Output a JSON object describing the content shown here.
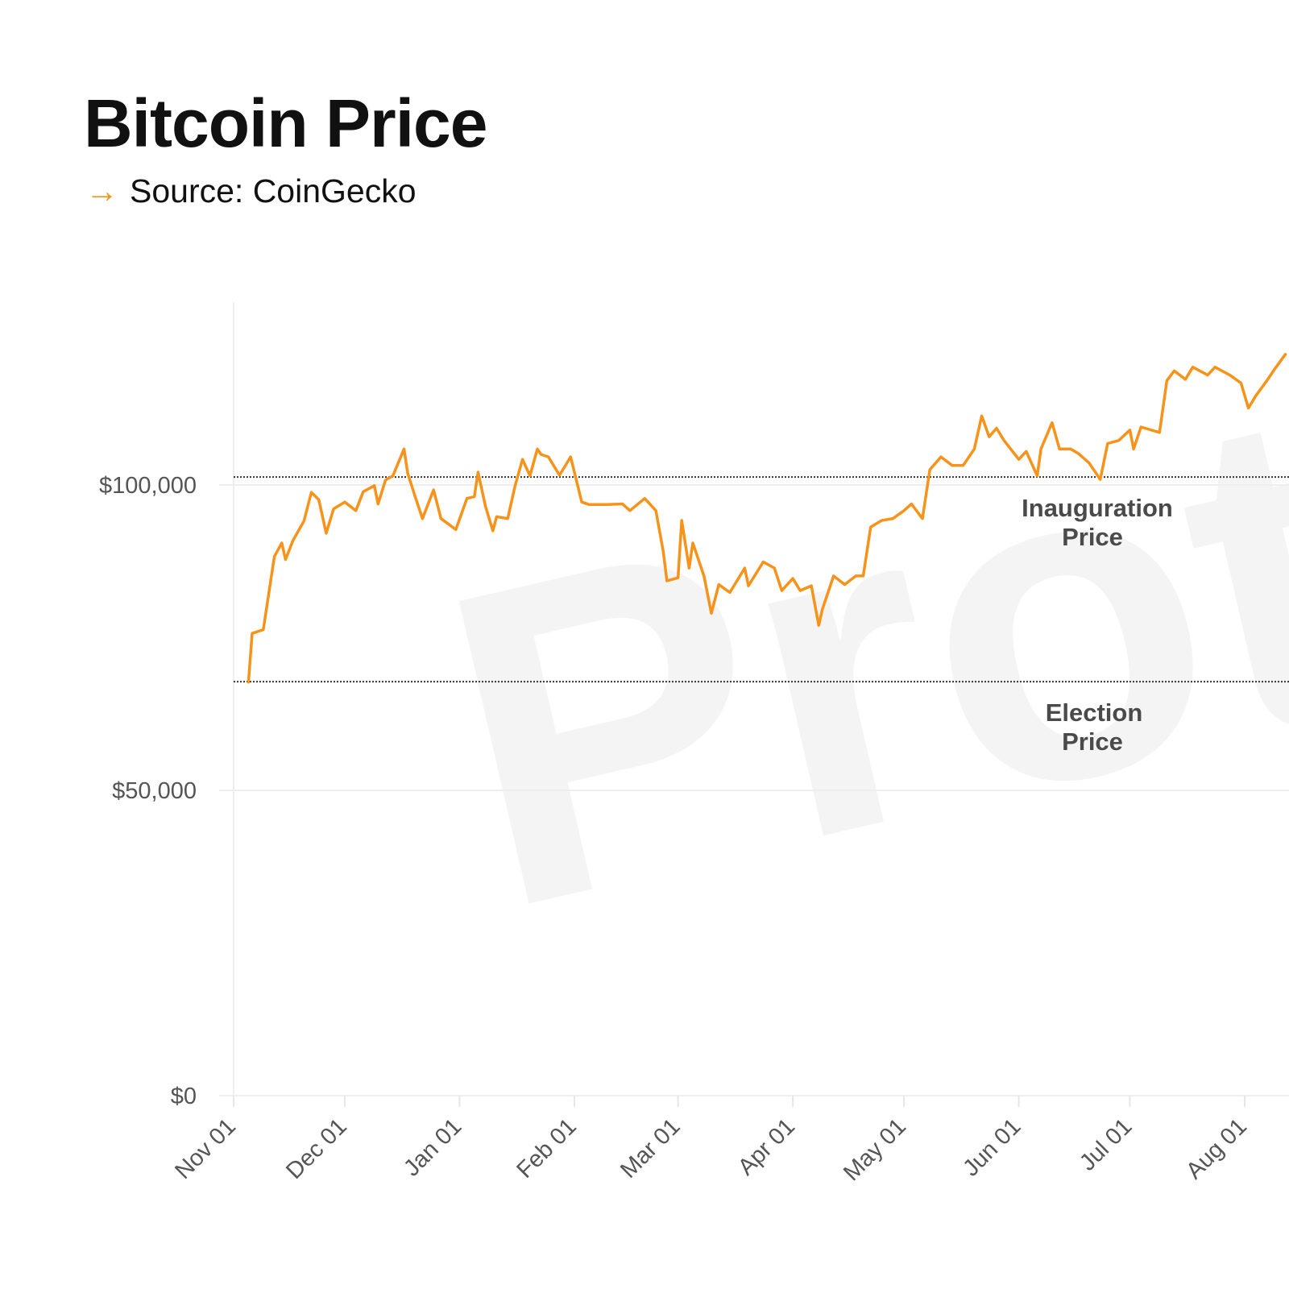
{
  "chart_data": {
    "type": "line",
    "title": "Bitcoin Price",
    "subtitle": "Source: CoinGecko",
    "watermark": "Protos",
    "xlabel": "",
    "ylabel": "",
    "ylim": [
      0,
      127000
    ],
    "x_ticks": [
      "Nov 01",
      "Dec 01",
      "Jan 01",
      "Feb 01",
      "Mar 01",
      "Apr 01",
      "May 01",
      "Jun 01",
      "Jul 01",
      "Aug 01"
    ],
    "y_ticks": [
      {
        "value": 0,
        "label": "$0"
      },
      {
        "value": 50000,
        "label": "$50,000"
      },
      {
        "value": 100000,
        "label": "$100,000"
      }
    ],
    "grid": "horizontal",
    "line_color": "#f7931a",
    "reference_lines": [
      {
        "label_line1": "Inauguration",
        "label_line2": "Price",
        "value": 101300
      },
      {
        "label_line1": "Election",
        "label_line2": "Price",
        "value": 67800
      }
    ],
    "series": [
      {
        "points": [
          [
            "Nov 05",
            67700
          ],
          [
            "Nov 06",
            75700
          ],
          [
            "Nov 09",
            76300
          ],
          [
            "Nov 12",
            88300
          ],
          [
            "Nov 14",
            90500
          ],
          [
            "Nov 15",
            87800
          ],
          [
            "Nov 17",
            90900
          ],
          [
            "Nov 20",
            94100
          ],
          [
            "Nov 22",
            98800
          ],
          [
            "Nov 24",
            97600
          ],
          [
            "Nov 26",
            92100
          ],
          [
            "Nov 28",
            96100
          ],
          [
            "Dec 01",
            97200
          ],
          [
            "Dec 04",
            95800
          ],
          [
            "Dec 06",
            98900
          ],
          [
            "Dec 09",
            99900
          ],
          [
            "Dec 10",
            96900
          ],
          [
            "Dec 12",
            100800
          ],
          [
            "Dec 14",
            101500
          ],
          [
            "Dec 17",
            105900
          ],
          [
            "Dec 18",
            101900
          ],
          [
            "Dec 20",
            98100
          ],
          [
            "Dec 22",
            94500
          ],
          [
            "Dec 25",
            99200
          ],
          [
            "Dec 27",
            94500
          ],
          [
            "Dec 31",
            92700
          ],
          [
            "Jan 03",
            97800
          ],
          [
            "Jan 05",
            98100
          ],
          [
            "Jan 06",
            102100
          ],
          [
            "Jan 08",
            96500
          ],
          [
            "Jan 10",
            92500
          ],
          [
            "Jan 11",
            94800
          ],
          [
            "Jan 14",
            94500
          ],
          [
            "Jan 16",
            99900
          ],
          [
            "Jan 18",
            104200
          ],
          [
            "Jan 20",
            101500
          ],
          [
            "Jan 22",
            105900
          ],
          [
            "Jan 23",
            105000
          ],
          [
            "Jan 25",
            104600
          ],
          [
            "Jan 28",
            101600
          ],
          [
            "Jan 31",
            104600
          ],
          [
            "Feb 03",
            97200
          ],
          [
            "Feb 05",
            96800
          ],
          [
            "Feb 10",
            96800
          ],
          [
            "Feb 14",
            96900
          ],
          [
            "Feb 16",
            95800
          ],
          [
            "Feb 20",
            97800
          ],
          [
            "Feb 23",
            95800
          ],
          [
            "Feb 25",
            89100
          ],
          [
            "Feb 26",
            84300
          ],
          [
            "Mar 01",
            84800
          ],
          [
            "Mar 02",
            94200
          ],
          [
            "Mar 04",
            86400
          ],
          [
            "Mar 05",
            90500
          ],
          [
            "Mar 08",
            85100
          ],
          [
            "Mar 10",
            79000
          ],
          [
            "Mar 12",
            83700
          ],
          [
            "Mar 15",
            82400
          ],
          [
            "Mar 19",
            86400
          ],
          [
            "Mar 20",
            83500
          ],
          [
            "Mar 24",
            87400
          ],
          [
            "Mar 27",
            86400
          ],
          [
            "Mar 29",
            82700
          ],
          [
            "Apr 01",
            84700
          ],
          [
            "Apr 03",
            82700
          ],
          [
            "Apr 06",
            83500
          ],
          [
            "Apr 08",
            77000
          ],
          [
            "Apr 09",
            79700
          ],
          [
            "Apr 12",
            85100
          ],
          [
            "Apr 15",
            83700
          ],
          [
            "Apr 18",
            85100
          ],
          [
            "Apr 20",
            85100
          ],
          [
            "Apr 22",
            93100
          ],
          [
            "Apr 25",
            94200
          ],
          [
            "Apr 28",
            94500
          ],
          [
            "May 01",
            95800
          ],
          [
            "May 03",
            96900
          ],
          [
            "May 06",
            94500
          ],
          [
            "May 08",
            102500
          ],
          [
            "May 11",
            104600
          ],
          [
            "May 14",
            103200
          ],
          [
            "May 17",
            103200
          ],
          [
            "May 20",
            105900
          ],
          [
            "May 22",
            111300
          ],
          [
            "May 24",
            107900
          ],
          [
            "May 26",
            109300
          ],
          [
            "May 28",
            107300
          ],
          [
            "Jun 01",
            104200
          ],
          [
            "Jun 03",
            105500
          ],
          [
            "Jun 06",
            101500
          ],
          [
            "Jun 07",
            105900
          ],
          [
            "Jun 10",
            110200
          ],
          [
            "Jun 12",
            105900
          ],
          [
            "Jun 15",
            105900
          ],
          [
            "Jun 17",
            105200
          ],
          [
            "Jun 20",
            103600
          ],
          [
            "Jun 23",
            100900
          ],
          [
            "Jun 25",
            106800
          ],
          [
            "Jun 28",
            107300
          ],
          [
            "Jul 01",
            109000
          ],
          [
            "Jul 02",
            105900
          ],
          [
            "Jul 04",
            109500
          ],
          [
            "Jul 09",
            108600
          ],
          [
            "Jul 11",
            117100
          ],
          [
            "Jul 13",
            118700
          ],
          [
            "Jul 16",
            117300
          ],
          [
            "Jul 18",
            119300
          ],
          [
            "Jul 22",
            118000
          ],
          [
            "Jul 24",
            119300
          ],
          [
            "Jul 28",
            118000
          ],
          [
            "Jul 31",
            116700
          ],
          [
            "Aug 02",
            112600
          ],
          [
            "Aug 04",
            114600
          ],
          [
            "Aug 07",
            117100
          ],
          [
            "Aug 09",
            118900
          ],
          [
            "Aug 12",
            121400
          ]
        ]
      }
    ]
  }
}
